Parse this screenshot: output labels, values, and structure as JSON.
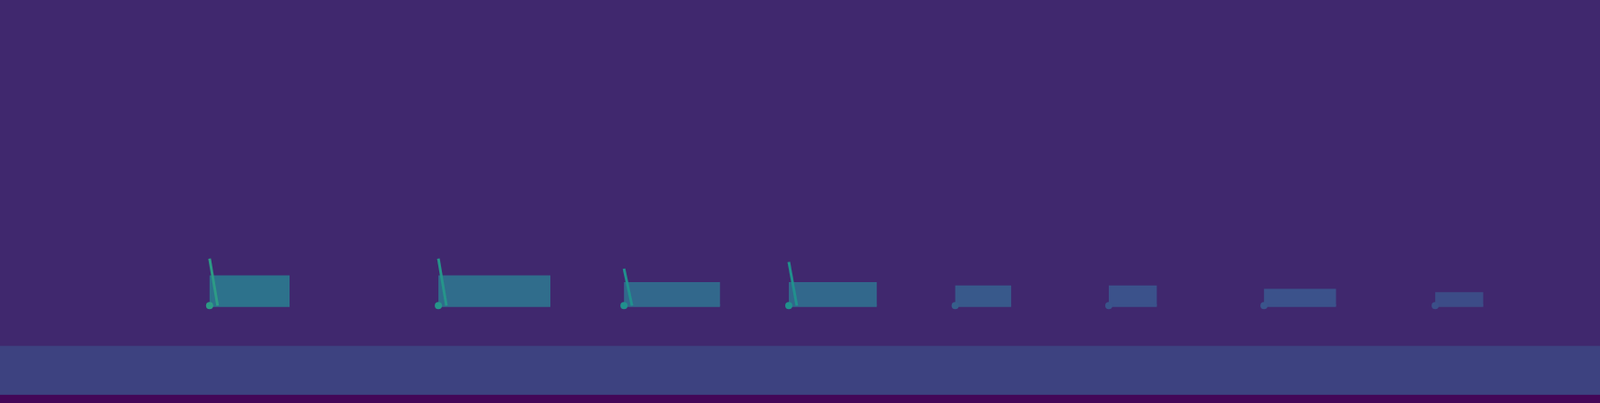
{
  "chart_data": {
    "type": "spectrogram",
    "tick_labels": false,
    "grid": false,
    "xlim": [
      0,
      10
    ],
    "ylim": [
      0,
      12
    ],
    "background_level": 0.12,
    "bands": [
      {
        "f_low": 0,
        "f_high": 0.25,
        "level": 0.02
      },
      {
        "f_low": 0.25,
        "f_high": 1.7,
        "level": 0.2
      }
    ],
    "calls": [
      {
        "time": 1.31,
        "sweep_duration": 0.05,
        "f_high": 4.3,
        "f_low": 2.9,
        "duration": 0.5,
        "tail_f_high": 3.8,
        "level": 0.55,
        "tail_level": 0.38
      },
      {
        "time": 2.74,
        "sweep_duration": 0.05,
        "f_high": 4.3,
        "f_low": 2.9,
        "duration": 0.7,
        "tail_f_high": 3.8,
        "level": 0.52,
        "tail_level": 0.36
      },
      {
        "time": 3.9,
        "sweep_duration": 0.05,
        "f_high": 4.0,
        "f_low": 2.9,
        "duration": 0.6,
        "tail_f_high": 3.6,
        "level": 0.5,
        "tail_level": 0.34
      },
      {
        "time": 4.93,
        "sweep_duration": 0.05,
        "f_high": 4.2,
        "f_low": 2.9,
        "duration": 0.55,
        "tail_f_high": 3.6,
        "level": 0.5,
        "tail_level": 0.34
      },
      {
        "time": 5.97,
        "sweep_duration": null,
        "f_high": null,
        "f_low": 2.9,
        "duration": 0.35,
        "tail_f_high": 3.5,
        "level": 0.3,
        "tail_level": 0.28
      },
      {
        "time": 6.93,
        "sweep_duration": null,
        "f_high": null,
        "f_low": 2.9,
        "duration": 0.3,
        "tail_f_high": 3.5,
        "level": 0.26,
        "tail_level": 0.25
      },
      {
        "time": 7.9,
        "sweep_duration": null,
        "f_high": null,
        "f_low": 2.9,
        "duration": 0.45,
        "tail_f_high": 3.4,
        "level": 0.26,
        "tail_level": 0.25
      },
      {
        "time": 8.97,
        "sweep_duration": null,
        "f_high": null,
        "f_low": 2.9,
        "duration": 0.3,
        "tail_f_high": 3.3,
        "level": 0.24,
        "tail_level": 0.23
      }
    ]
  }
}
